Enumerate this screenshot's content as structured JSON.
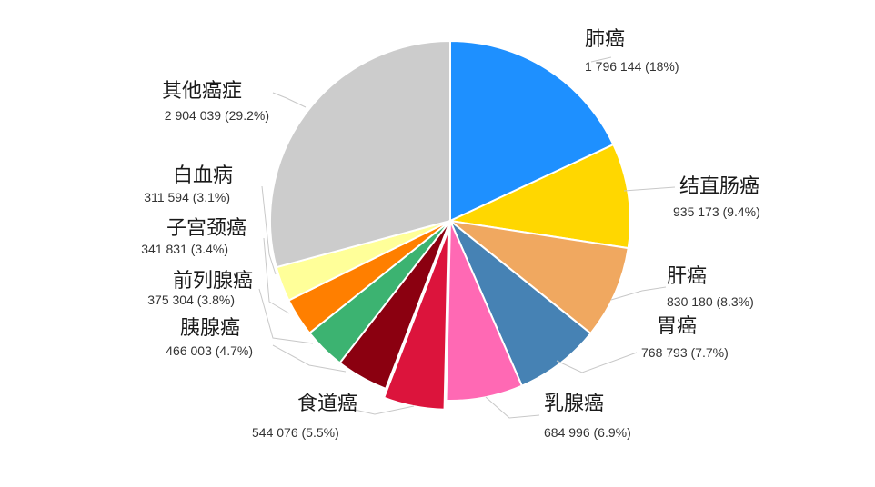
{
  "chart_data": {
    "type": "pie",
    "title": "",
    "series": [
      {
        "slices": [
          {
            "label": "肺癌",
            "value": 1796144,
            "value_text": "1 796 144 (18%)",
            "percent": 18.0,
            "color": "#1e90ff"
          },
          {
            "label": "结直肠癌",
            "value": 935173,
            "value_text": "935 173 (9.4%)",
            "percent": 9.4,
            "color": "#ffd700"
          },
          {
            "label": "肝癌",
            "value": 830180,
            "value_text": "830 180 (8.3%)",
            "percent": 8.3,
            "color": "#f0a860"
          },
          {
            "label": "胃癌",
            "value": 768793,
            "value_text": "768 793 (7.7%)",
            "percent": 7.7,
            "color": "#4682b4"
          },
          {
            "label": "乳腺癌",
            "value": 684996,
            "value_text": "684 996 (6.9%)",
            "percent": 6.9,
            "color": "#ff69b4"
          },
          {
            "label": "食道癌",
            "value": 544076,
            "value_text": "544 076 (5.5%)",
            "percent": 5.5,
            "color": "#dc143c",
            "exploded": true
          },
          {
            "label": "胰腺癌",
            "value": 466003,
            "value_text": "466 003 (4.7%)",
            "percent": 4.7,
            "color": "#8b0010"
          },
          {
            "label": "前列腺癌",
            "value": 375304,
            "value_text": "375 304 (3.8%)",
            "percent": 3.8,
            "color": "#3cb371"
          },
          {
            "label": "子宫颈癌",
            "value": 341831,
            "value_text": "341 831 (3.4%)",
            "percent": 3.4,
            "color": "#ff7f00"
          },
          {
            "label": "白血病",
            "value": 311594,
            "value_text": "311 594 (3.1%)",
            "percent": 3.1,
            "color": "#ffff99"
          },
          {
            "label": "其他癌症",
            "value": 2904039,
            "value_text": "2 904 039 (29.2%)",
            "percent": 29.2,
            "color": "#cccccc"
          }
        ]
      }
    ],
    "start": "12 o'clock",
    "direction": "clockwise",
    "legend": "none"
  }
}
